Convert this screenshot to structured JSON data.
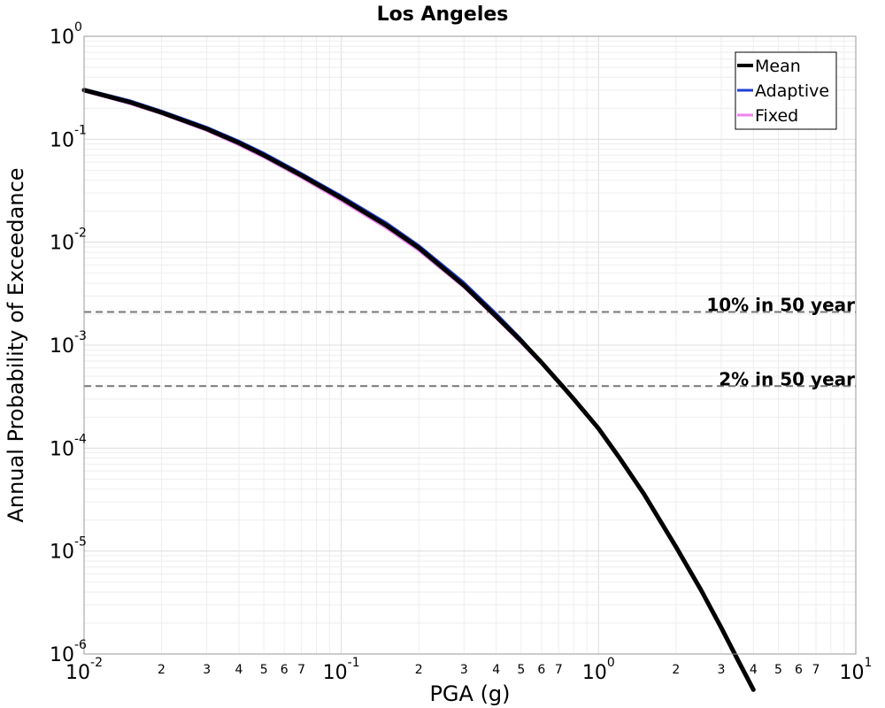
{
  "chart_data": {
    "type": "line",
    "title": "Los Angeles",
    "xlabel": "PGA (g)",
    "ylabel": "Annual Probability of Exceedance",
    "xscale": "log",
    "yscale": "log",
    "xlim": [
      0.01,
      10
    ],
    "ylim": [
      1e-06,
      1
    ],
    "grid": true,
    "legend_position": "top-right",
    "x_major_ticks": [
      {
        "value": 0.01,
        "base": "10",
        "exp": "-2"
      },
      {
        "value": 0.1,
        "base": "10",
        "exp": "-1"
      },
      {
        "value": 1,
        "base": "10",
        "exp": "0"
      },
      {
        "value": 10,
        "base": "10",
        "exp": "1"
      }
    ],
    "x_minor_ticks": [
      {
        "value": 0.02,
        "label": "2"
      },
      {
        "value": 0.03,
        "label": "3"
      },
      {
        "value": 0.04,
        "label": "4"
      },
      {
        "value": 0.05,
        "label": "5"
      },
      {
        "value": 0.06,
        "label": "6"
      },
      {
        "value": 0.07,
        "label": "7"
      },
      {
        "value": 0.2,
        "label": "2"
      },
      {
        "value": 0.3,
        "label": "3"
      },
      {
        "value": 0.4,
        "label": "4"
      },
      {
        "value": 0.5,
        "label": "5"
      },
      {
        "value": 0.6,
        "label": "6"
      },
      {
        "value": 0.7,
        "label": "7"
      },
      {
        "value": 2,
        "label": "2"
      },
      {
        "value": 3,
        "label": "3"
      },
      {
        "value": 4,
        "label": "4"
      },
      {
        "value": 5,
        "label": "5"
      },
      {
        "value": 6,
        "label": "6"
      },
      {
        "value": 7,
        "label": "7"
      }
    ],
    "y_major_ticks": [
      {
        "value": 1,
        "base": "10",
        "exp": "0"
      },
      {
        "value": 0.1,
        "base": "10",
        "exp": "-1"
      },
      {
        "value": 0.01,
        "base": "10",
        "exp": "-2"
      },
      {
        "value": 0.001,
        "base": "10",
        "exp": "-3"
      },
      {
        "value": 0.0001,
        "base": "10",
        "exp": "-4"
      },
      {
        "value": 1e-05,
        "base": "10",
        "exp": "-5"
      },
      {
        "value": 1e-06,
        "base": "10",
        "exp": "-6"
      }
    ],
    "reference_lines": [
      {
        "label": "10% in 50 year",
        "y": 0.0021
      },
      {
        "label": "2% in 50 year",
        "y": 0.0004
      }
    ],
    "series": [
      {
        "name": "Fixed",
        "color": "#ee82ee",
        "width": 2,
        "x": [
          0.01,
          0.015,
          0.02,
          0.03,
          0.04,
          0.05,
          0.07,
          0.1,
          0.15,
          0.2,
          0.3,
          0.4,
          0.5,
          0.6,
          0.7,
          0.8
        ],
        "y": [
          0.29,
          0.22,
          0.175,
          0.12,
          0.087,
          0.066,
          0.042,
          0.025,
          0.0135,
          0.0082,
          0.0036,
          0.0018,
          0.00104,
          0.00065,
          0.00042,
          0.00029
        ]
      },
      {
        "name": "Adaptive",
        "color": "#1f3fd6",
        "width": 2,
        "x": [
          0.01,
          0.015,
          0.02,
          0.03,
          0.04,
          0.05,
          0.07,
          0.1,
          0.15,
          0.2,
          0.3,
          0.4,
          0.5,
          0.6,
          0.7,
          0.8
        ],
        "y": [
          0.31,
          0.24,
          0.19,
          0.132,
          0.097,
          0.074,
          0.047,
          0.0285,
          0.0155,
          0.0094,
          0.0041,
          0.00205,
          0.00116,
          0.0007,
          0.00045,
          0.0003
        ]
      },
      {
        "name": "Mean",
        "color": "#000000",
        "width": 5,
        "x": [
          0.01,
          0.015,
          0.02,
          0.03,
          0.04,
          0.05,
          0.07,
          0.1,
          0.15,
          0.2,
          0.3,
          0.4,
          0.5,
          0.6,
          0.7,
          0.8,
          1.0,
          1.2,
          1.5,
          2.0,
          2.5,
          3.0,
          3.5,
          4.0
        ],
        "y": [
          0.3,
          0.23,
          0.182,
          0.126,
          0.092,
          0.07,
          0.0445,
          0.0268,
          0.0145,
          0.0088,
          0.0038,
          0.0019,
          0.0011,
          0.00068,
          0.00044,
          0.0003,
          0.000155,
          8.2e-05,
          3.6e-05,
          1.1e-05,
          4.2e-06,
          1.8e-06,
          8.5e-07,
          4.5e-07
        ]
      }
    ],
    "legend": [
      {
        "name": "Mean",
        "color": "#000000",
        "width": 4
      },
      {
        "name": "Adaptive",
        "color": "#1f3fd6",
        "width": 3
      },
      {
        "name": "Fixed",
        "color": "#ee82ee",
        "width": 3
      }
    ]
  }
}
